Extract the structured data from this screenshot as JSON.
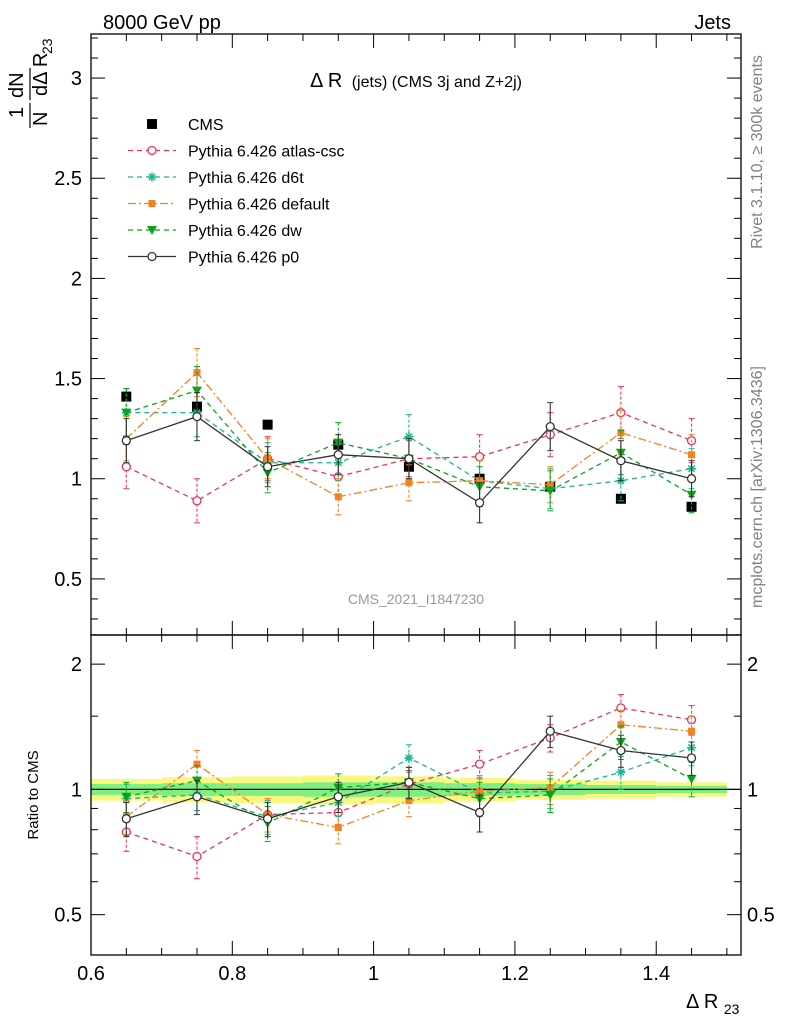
{
  "header": {
    "energy_label": "8000 GeV pp",
    "process_label": "Jets"
  },
  "side_labels": {
    "rivet": "Rivet 3.1.10, ≥ 300k events",
    "mcplots": "mcplots.cern.ch [arXiv:1306.3436]"
  },
  "analysis_id": "CMS_2021_I1847230",
  "colors": {
    "CMS": "#000000",
    "atlas_csc": "#e8345a",
    "d6t": "#17b890",
    "default": "#f5811f",
    "dw": "#0aa51a",
    "p0": "#333333",
    "band_inner": "#7ff07f",
    "band_outer": "#f8f880"
  },
  "chart_data": [
    {
      "panel": "main",
      "type": "scatter",
      "title": "Δ R (jets) (CMS 3j and Z+2j)",
      "title_main": "Δ R",
      "title_rest": "(jets) (CMS 3j and Z+2j)",
      "ylabel_top": "1",
      "ylabel_num": "dN",
      "ylabel_den": "NdΔ R",
      "ylabel_sub": "23",
      "xlim": [
        0.6,
        1.52
      ],
      "ylim": [
        0.22,
        3.22
      ],
      "yticks": [
        0.5,
        1,
        1.5,
        2,
        2.5,
        3
      ],
      "ytick_labels": [
        "0.5",
        "1",
        "1.5",
        "2",
        "2.5",
        "3"
      ],
      "x": [
        0.65,
        0.75,
        0.85,
        0.95,
        1.05,
        1.15,
        1.25,
        1.35,
        1.45
      ],
      "series": [
        {
          "name": "CMS",
          "key": "CMS",
          "marker": "square",
          "line": "none",
          "values": [
            1.41,
            1.36,
            1.27,
            1.17,
            1.06,
            1.0,
            0.96,
            0.9,
            0.86
          ],
          "errors": [
            0.01,
            0.01,
            0.01,
            0.01,
            0.01,
            0.01,
            0.01,
            0.01,
            0.01
          ]
        },
        {
          "name": "Pythia 6.426 atlas-csc",
          "key": "atlas_csc",
          "marker": "open-circle",
          "line": "dashed",
          "values": [
            1.06,
            0.89,
            1.1,
            1.01,
            1.1,
            1.11,
            1.22,
            1.33,
            1.19
          ],
          "errors": [
            0.11,
            0.11,
            0.11,
            0.09,
            0.09,
            0.11,
            0.11,
            0.13,
            0.11
          ]
        },
        {
          "name": "Pythia 6.426 d6t",
          "key": "d6t",
          "marker": "star",
          "line": "dashed",
          "values": [
            1.33,
            1.33,
            1.08,
            1.08,
            1.21,
            0.99,
            0.95,
            0.99,
            1.05
          ],
          "errors": [
            0.12,
            0.12,
            0.1,
            0.09,
            0.11,
            0.1,
            0.1,
            0.1,
            0.1
          ]
        },
        {
          "name": "Pythia 6.426 default",
          "key": "default",
          "marker": "filled-square",
          "line": "dashdot",
          "values": [
            1.2,
            1.53,
            1.1,
            0.91,
            0.98,
            0.99,
            0.97,
            1.23,
            1.12
          ],
          "errors": [
            0.11,
            0.12,
            0.1,
            0.09,
            0.09,
            0.1,
            0.09,
            0.11,
            0.1
          ]
        },
        {
          "name": "Pythia 6.426 dw",
          "key": "dw",
          "marker": "triangle-down",
          "line": "dashed",
          "values": [
            1.33,
            1.44,
            1.03,
            1.18,
            1.1,
            0.96,
            0.94,
            1.13,
            0.92
          ],
          "errors": [
            0.12,
            0.12,
            0.1,
            0.1,
            0.1,
            0.1,
            0.1,
            0.11,
            0.09
          ]
        },
        {
          "name": "Pythia 6.426 p0",
          "key": "p0",
          "marker": "open-circle",
          "line": "solid",
          "values": [
            1.19,
            1.31,
            1.06,
            1.12,
            1.1,
            0.88,
            1.26,
            1.09,
            1.0
          ],
          "errors": [
            0.11,
            0.12,
            0.1,
            0.1,
            0.1,
            0.1,
            0.12,
            0.1,
            0.09
          ]
        }
      ]
    },
    {
      "panel": "ratio",
      "type": "scatter",
      "ylabel": "Ratio to CMS",
      "xlabel_main": "Δ R",
      "xlabel_sub": "23",
      "xlim": [
        0.6,
        1.52
      ],
      "ylim": [
        0.4,
        2.35
      ],
      "yticks": [
        0.5,
        1,
        2
      ],
      "ytick_labels": [
        "0.5",
        "1",
        "2"
      ],
      "xticks": [
        0.6,
        0.8,
        1,
        1.2,
        1.4
      ],
      "xtick_labels": [
        "0.6",
        "0.8",
        "1",
        "1.2",
        "1.4"
      ],
      "x": [
        0.65,
        0.75,
        0.85,
        0.95,
        1.05,
        1.15,
        1.25,
        1.35,
        1.45
      ],
      "band_inner": [
        0.03,
        0.035,
        0.035,
        0.04,
        0.04,
        0.035,
        0.03,
        0.025,
        0.02
      ],
      "band_outer": [
        0.06,
        0.07,
        0.075,
        0.08,
        0.075,
        0.065,
        0.055,
        0.05,
        0.04
      ],
      "series": [
        {
          "key": "atlas_csc",
          "values": [
            0.79,
            0.69,
            0.87,
            0.88,
            1.03,
            1.15,
            1.33,
            1.57,
            1.47
          ],
          "errors": [
            0.08,
            0.08,
            0.08,
            0.07,
            0.08,
            0.09,
            0.1,
            0.12,
            0.12
          ]
        },
        {
          "key": "d6t",
          "values": [
            0.95,
            0.97,
            0.86,
            0.93,
            1.19,
            0.98,
            0.99,
            1.1,
            1.26
          ],
          "errors": [
            0.08,
            0.08,
            0.08,
            0.07,
            0.09,
            0.09,
            0.09,
            0.1,
            0.12
          ]
        },
        {
          "key": "default",
          "values": [
            0.86,
            1.15,
            0.87,
            0.81,
            0.94,
            0.99,
            1.01,
            1.43,
            1.38
          ],
          "errors": [
            0.08,
            0.09,
            0.08,
            0.07,
            0.08,
            0.09,
            0.09,
            0.12,
            0.12
          ]
        },
        {
          "key": "dw",
          "values": [
            0.96,
            1.05,
            0.83,
            1.01,
            1.04,
            0.95,
            0.97,
            1.3,
            1.06
          ],
          "errors": [
            0.08,
            0.09,
            0.08,
            0.08,
            0.09,
            0.09,
            0.09,
            0.12,
            0.1
          ]
        },
        {
          "key": "p0",
          "values": [
            0.85,
            0.96,
            0.85,
            0.96,
            1.04,
            0.88,
            1.38,
            1.24,
            1.19
          ],
          "errors": [
            0.08,
            0.09,
            0.08,
            0.08,
            0.09,
            0.09,
            0.12,
            0.11,
            0.11
          ]
        }
      ]
    }
  ]
}
